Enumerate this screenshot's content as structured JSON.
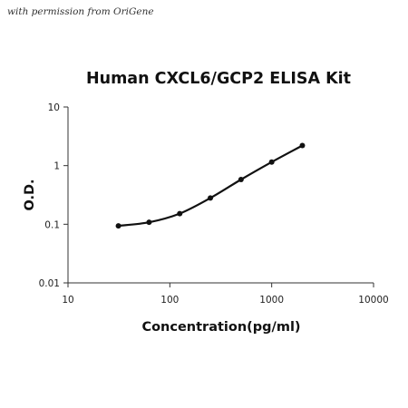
{
  "watermark": "with permission from OriGene",
  "chart_data": {
    "type": "line",
    "title": "Human CXCL6/GCP2 ELISA Kit",
    "xlabel": "Concentration(pg/ml)",
    "ylabel": "O.D.",
    "xscale": "log",
    "yscale": "log",
    "xlim": [
      10,
      10000
    ],
    "ylim": [
      0.01,
      10
    ],
    "x_ticks": [
      "10",
      "100",
      "1000",
      "10000"
    ],
    "y_ticks": [
      "0.01",
      "0.1",
      "1",
      "10"
    ],
    "grid": false,
    "legend": "none",
    "line_color": "#111111",
    "series": [
      {
        "x": [
          31.25,
          62.5,
          125,
          250,
          500,
          1000,
          2000
        ],
        "y": [
          0.094,
          0.108,
          0.152,
          0.28,
          0.58,
          1.15,
          2.2
        ]
      }
    ]
  }
}
